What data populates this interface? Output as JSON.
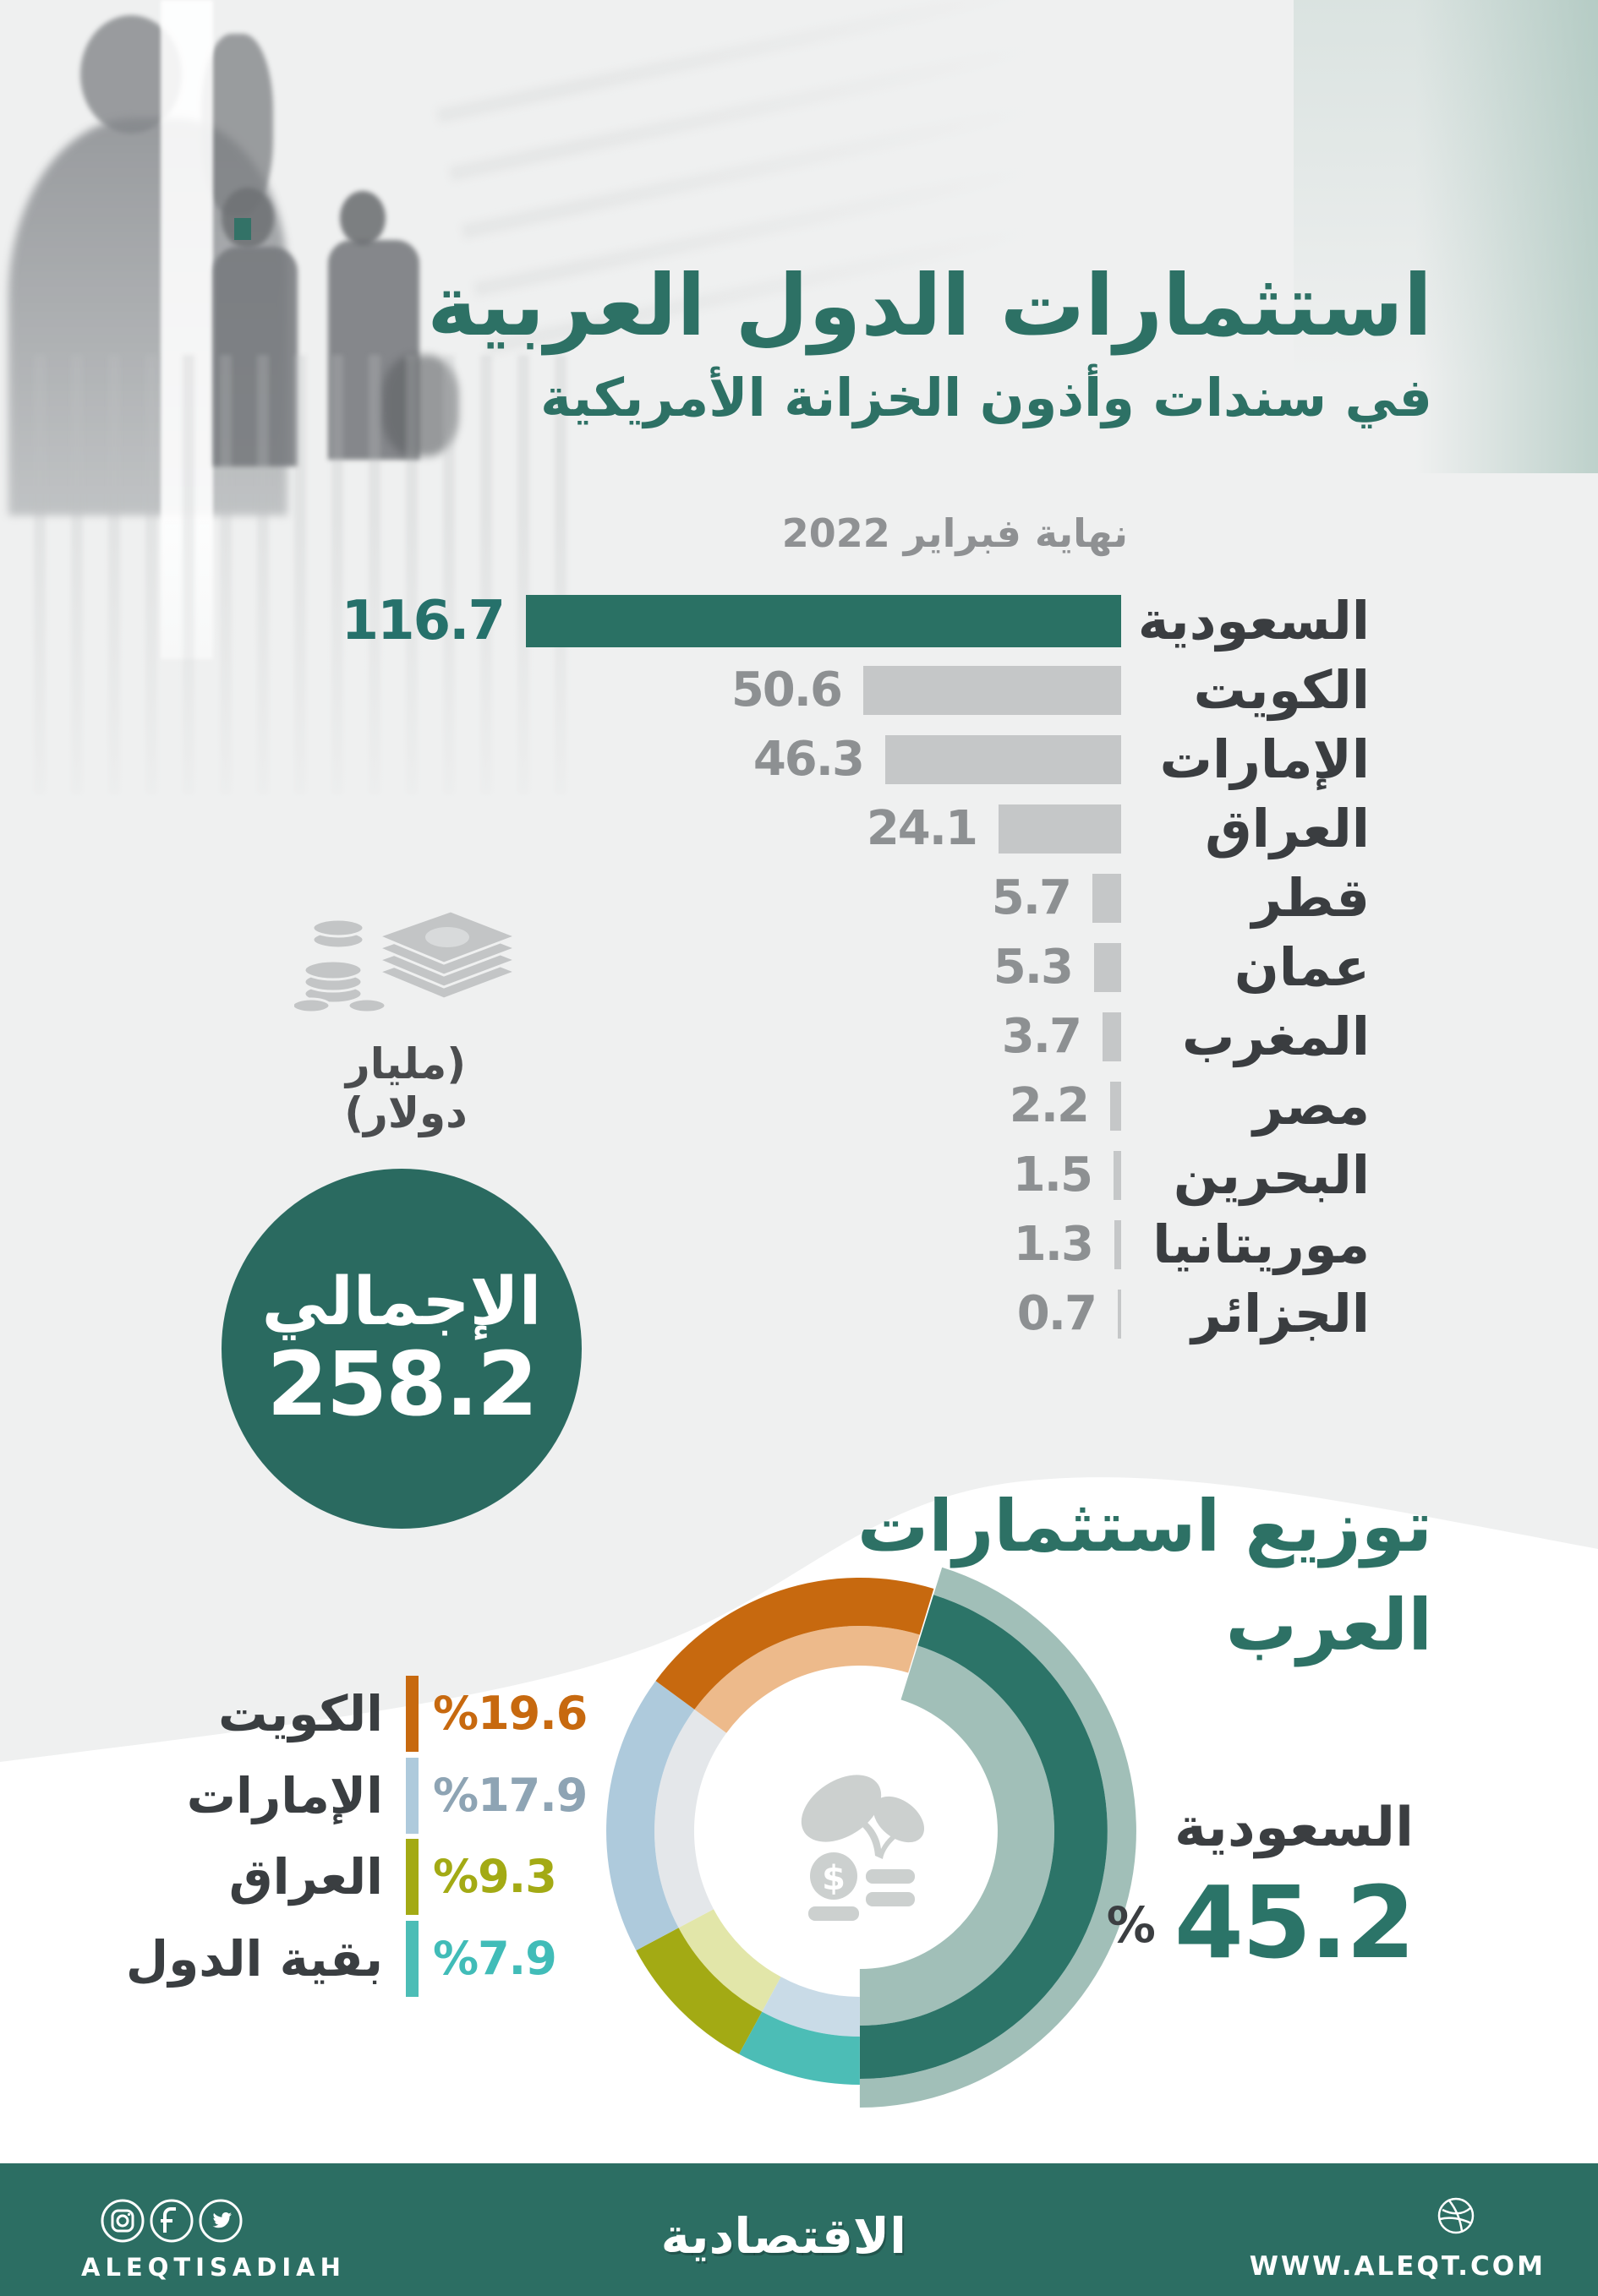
{
  "page": {
    "bg": "#eff0f0",
    "accent_teal": "#2c7166",
    "footer_bg": "#2c6e63",
    "total_circle_bg": "#2a6a60"
  },
  "header": {
    "title": "استثمارات الدول العربية",
    "subtitle": "في سندات وأذون الخزانة الأمريكية",
    "date_label": "نهاية فبراير 2022"
  },
  "unit_note": {
    "label": "(مليار دولار)",
    "icon": "money-bills-coins-icon"
  },
  "total_badge": {
    "label": "الإجمالي",
    "value": "258.2"
  },
  "chart_data": [
    {
      "type": "bar",
      "orientation": "horizontal-rtl",
      "note": "نهاية فبراير 2022",
      "unit": "مليار دولار",
      "categories": [
        "السعودية",
        "الكويت",
        "الإمارات",
        "العراق",
        "قطر",
        "عمان",
        "المغرب",
        "مصر",
        "البحرين",
        "موريتانيا",
        "الجزائر"
      ],
      "values": [
        116.7,
        50.6,
        46.3,
        24.1,
        5.7,
        5.3,
        3.7,
        2.2,
        1.5,
        1.3,
        0.7
      ],
      "highlight_index": 0,
      "bar_color": "#c5c7c8",
      "highlight_color": "#2a7164",
      "value_color": "#8d9092",
      "highlight_value_color": "#26716b",
      "label_color": "#3a3d40",
      "xlim": [
        0,
        116.7
      ],
      "grid": false
    },
    {
      "type": "donut",
      "title_line1": "توزيع استثمارات",
      "title_line2": "العرب",
      "start_angle_deg": 17.3,
      "segments": [
        {
          "label": "السعودية",
          "pct": 45.2,
          "color": "#2c7468",
          "light_color": "#a1bfb8",
          "exploded": true
        },
        {
          "label": "بقية الدول",
          "pct": 7.9,
          "color": "#4cbdb6",
          "light_color": "#c9dbe7"
        },
        {
          "label": "العراق",
          "pct": 9.3,
          "color": "#a3aa14",
          "light_color": "#e2e6a9"
        },
        {
          "label": "الإمارات",
          "pct": 17.9,
          "color": "#aecadc",
          "light_color": "#e4e7ea"
        },
        {
          "label": "الكويت",
          "pct": 19.6,
          "color": "#c7690f",
          "light_color": "#edba8b"
        }
      ],
      "center_icon": "money-plant-icon",
      "legend_position": "left"
    }
  ],
  "donut_legend": [
    {
      "label": "الكويت",
      "pct_text": "%19.6",
      "bar_color": "#c7690f",
      "text_color": "#c7690f"
    },
    {
      "label": "الإمارات",
      "pct_text": "%17.9",
      "bar_color": "#aecadc",
      "text_color": "#8ea4b4"
    },
    {
      "label": "العراق",
      "pct_text": "%9.3",
      "bar_color": "#a3aa14",
      "text_color": "#a3aa14"
    },
    {
      "label": "بقية الدول",
      "pct_text": "%7.9",
      "bar_color": "#4cbdb6",
      "text_color": "#41bcb8"
    }
  ],
  "saudi_callout": {
    "label": "السعودية",
    "value": "45.2",
    "percent_sign": "%"
  },
  "footer": {
    "handle": "ALEQTISADIAH",
    "logo": "الاقتصادية",
    "site": "WWW.ALEQT.COM",
    "social_icons": [
      "instagram-icon",
      "facebook-icon",
      "twitter-icon"
    ],
    "right_icon": "dribbble-icon"
  }
}
